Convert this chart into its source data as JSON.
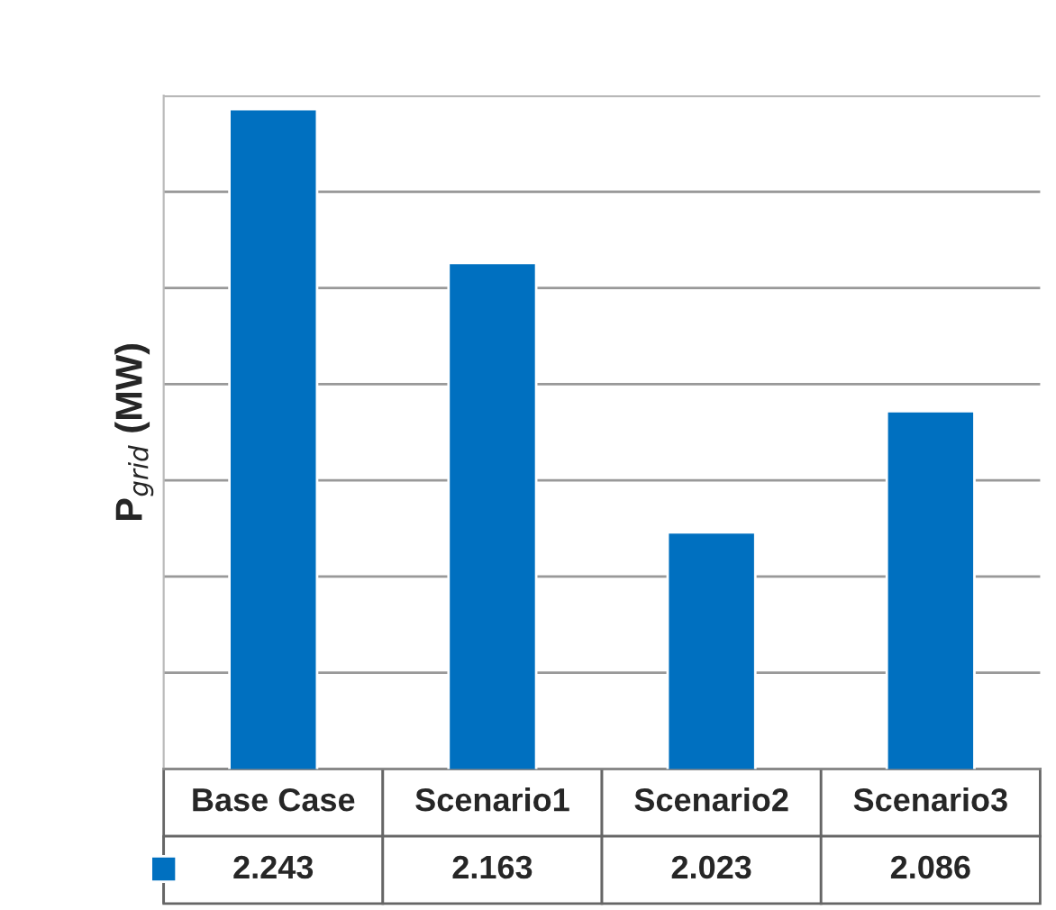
{
  "chart_data": {
    "type": "bar",
    "ylabel": "P$_{grid}$ (MW)",
    "categories": [
      "Base Case",
      "Scenario1",
      "Scenario2",
      "Scenario3"
    ],
    "values": [
      2.243,
      2.163,
      2.023,
      2.086
    ],
    "color": "#0070c0",
    "ylim": [
      1.9,
      2.25
    ],
    "yticks": [
      {
        "value": 1.9,
        "label": null
      },
      {
        "value": 1.95,
        "label": null
      },
      {
        "value": 2.0,
        "label": null
      },
      {
        "value": 2.05,
        "label": null
      },
      {
        "value": 2.1,
        "label": null
      },
      {
        "value": 2.15,
        "label": null
      },
      {
        "value": 2.2,
        "label": null
      },
      {
        "value": 2.25,
        "label": null
      }
    ],
    "grid": "y",
    "tick_labels": false,
    "data_labels": true
  }
}
